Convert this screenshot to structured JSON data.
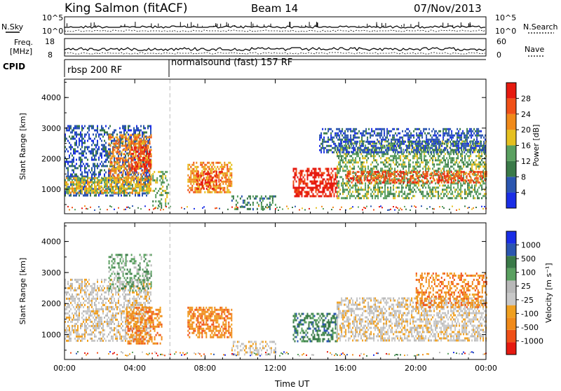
{
  "header": {
    "station": "King Salmon (fitACF)",
    "beam": "Beam 14",
    "date": "07/Nov/2013"
  },
  "strips": {
    "nsky_label": "N.Sky",
    "nsearch_label": "N.Search",
    "freq_label_1": "Freq.",
    "freq_label_2": "[MHz]",
    "nave_label": "Nave",
    "cpid_label": "CPID",
    "noise_left_ticks": [
      "10^5",
      "10^0"
    ],
    "noise_right_ticks": [
      "10^5",
      "10^0"
    ],
    "freq_ticks": [
      "18",
      "8"
    ],
    "nave_ticks": [
      "60",
      "0"
    ]
  },
  "cpid_segments": [
    {
      "label": "rbsp 200 RF",
      "start_hour": 0
    },
    {
      "label": "normalsound (fast) 157 RF",
      "start_hour": 6
    }
  ],
  "colors": {
    "power_scale": [
      "#1a2ee6",
      "#2b56b0",
      "#3a7a48",
      "#5aa060",
      "#e5c020",
      "#f08a1a",
      "#f05018",
      "#e61a10"
    ],
    "velocity_scale": [
      "#e61a10",
      "#f05018",
      "#f08a1a",
      "#f0a020",
      "#c8c8c8",
      "#b8b8b8",
      "#5aa060",
      "#3a7a48",
      "#2b56b0",
      "#1a2ee6"
    ]
  },
  "chart_data": [
    {
      "type": "heatmap",
      "title": "",
      "xlabel": "",
      "ylabel": "Slant Range [km]",
      "xlim_hours": [
        0,
        24
      ],
      "ylim": [
        200,
        4600
      ],
      "y_ticks": [
        1000,
        2000,
        3000,
        4000
      ],
      "x_ticks": [
        0,
        4,
        8,
        12,
        16,
        20,
        24
      ],
      "colorbar": {
        "label": "Power [dB]",
        "ticks": [
          4,
          8,
          12,
          16,
          20,
          24,
          28
        ],
        "range": [
          0,
          32
        ]
      },
      "bands": [
        {
          "t0": 0.0,
          "t1": 4.9,
          "r0": 800,
          "r1": 3100,
          "level": 1,
          "density": 0.45
        },
        {
          "t0": 0.0,
          "t1": 4.9,
          "r0": 900,
          "r1": 1400,
          "level": 4,
          "density": 0.7
        },
        {
          "t0": 2.5,
          "t1": 4.9,
          "r0": 1300,
          "r1": 2800,
          "level": 5,
          "density": 0.5
        },
        {
          "t0": 3.8,
          "t1": 4.9,
          "r0": 1600,
          "r1": 2400,
          "level": 7,
          "density": 0.35
        },
        {
          "t0": 5.0,
          "t1": 5.9,
          "r0": 400,
          "r1": 1600,
          "level": 3,
          "density": 0.35
        },
        {
          "t0": 7.0,
          "t1": 9.5,
          "r0": 900,
          "r1": 1900,
          "level": 5,
          "density": 0.6
        },
        {
          "t0": 7.5,
          "t1": 9.0,
          "r0": 1000,
          "r1": 1600,
          "level": 7,
          "density": 0.4
        },
        {
          "t0": 9.5,
          "t1": 12.0,
          "r0": 350,
          "r1": 800,
          "level": 2,
          "density": 0.4
        },
        {
          "t0": 13.0,
          "t1": 15.5,
          "r0": 800,
          "r1": 1700,
          "level": 7,
          "density": 0.6
        },
        {
          "t0": 15.5,
          "t1": 24.0,
          "r0": 700,
          "r1": 2600,
          "level": 3,
          "density": 0.5
        },
        {
          "t0": 16.0,
          "t1": 24.0,
          "r0": 1200,
          "r1": 1600,
          "level": 6,
          "density": 0.5
        },
        {
          "t0": 14.5,
          "t1": 24.0,
          "r0": 2200,
          "r1": 3000,
          "level": 1,
          "density": 0.5
        }
      ]
    },
    {
      "type": "heatmap",
      "title": "",
      "xlabel": "Time UT",
      "ylabel": "Slant Range [km]",
      "xlim_hours": [
        0,
        24
      ],
      "ylim": [
        200,
        4600
      ],
      "y_ticks": [
        1000,
        2000,
        3000,
        4000
      ],
      "x_ticks": [
        0,
        4,
        8,
        12,
        16,
        20,
        24
      ],
      "x_tick_labels": [
        "00:00",
        "04:00",
        "08:00",
        "12:00",
        "16:00",
        "20:00",
        "00:00"
      ],
      "colorbar": {
        "label": "Velocity [m s⁻¹]",
        "ticks": [
          -1000,
          -500,
          -100,
          -25,
          25,
          100,
          500,
          1000
        ],
        "tick_labels": [
          "-1000",
          "-500",
          "-100",
          "-25",
          "25",
          "100",
          "500",
          "1000"
        ]
      },
      "bands": [
        {
          "t0": 0.0,
          "t1": 4.9,
          "r0": 800,
          "r1": 2800,
          "level": 4,
          "density": 0.5
        },
        {
          "t0": 2.5,
          "t1": 4.9,
          "r0": 2400,
          "r1": 3600,
          "level": 6,
          "density": 0.4
        },
        {
          "t0": 3.5,
          "t1": 5.5,
          "r0": 700,
          "r1": 1900,
          "level": 2,
          "density": 0.5
        },
        {
          "t0": 7.0,
          "t1": 9.5,
          "r0": 900,
          "r1": 1900,
          "level": 2,
          "density": 0.6
        },
        {
          "t0": 9.5,
          "t1": 12.0,
          "r0": 350,
          "r1": 800,
          "level": 4,
          "density": 0.4
        },
        {
          "t0": 13.0,
          "t1": 15.5,
          "r0": 800,
          "r1": 1700,
          "level": 7,
          "density": 0.5
        },
        {
          "t0": 15.5,
          "t1": 24.0,
          "r0": 800,
          "r1": 2200,
          "level": 4,
          "density": 0.55
        },
        {
          "t0": 20.0,
          "t1": 24.0,
          "r0": 1900,
          "r1": 3000,
          "level": 2,
          "density": 0.4
        }
      ]
    }
  ]
}
